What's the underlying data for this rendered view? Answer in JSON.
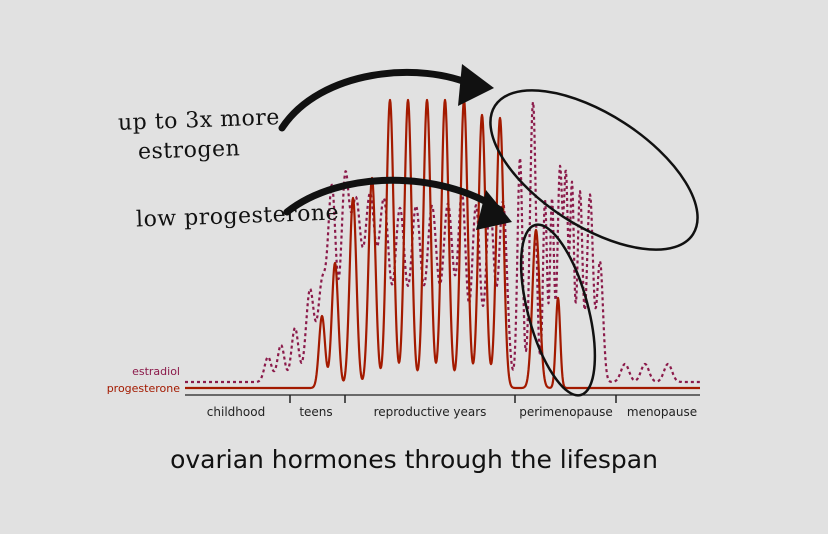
{
  "caption": "ovarian hormones through the lifespan",
  "annotations": {
    "estrogen_note": [
      "up to 3x more",
      "estrogen"
    ],
    "progesterone_note": "low progesterone"
  },
  "colors": {
    "background": "#e1e1e1",
    "estradiol": "#8b1a4a",
    "progesterone": "#a31a00",
    "ink": "#111111"
  },
  "chart_data": {
    "type": "line",
    "title": "ovarian hormones through the lifespan",
    "legend": [
      "estradiol",
      "progesterone"
    ],
    "legend_placement": "left",
    "x_categories": [
      "childhood",
      "teens",
      "reproductive years",
      "perimenopause",
      "menopause"
    ],
    "series": [
      {
        "name": "estradiol",
        "style": "dotted"
      },
      {
        "name": "progesterone",
        "style": "solid"
      }
    ],
    "grid": false
  }
}
